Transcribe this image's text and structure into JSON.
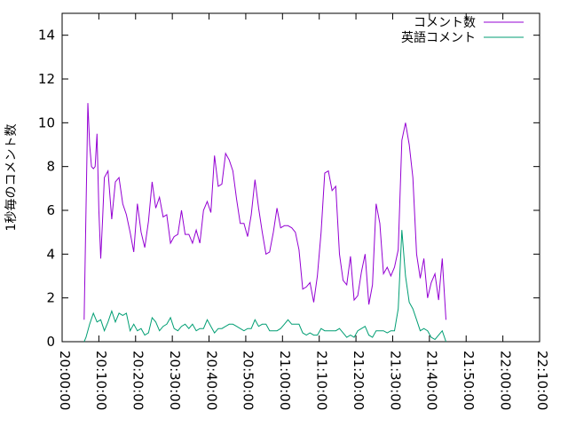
{
  "chart_data": {
    "type": "line",
    "title": "",
    "xlabel": "",
    "ylabel": "1秒毎のコメント数",
    "xlim": [
      "20:00:00",
      "22:10:00"
    ],
    "ylim": [
      0,
      15
    ],
    "xticks": [
      "20:00:00",
      "20:10:00",
      "20:20:00",
      "20:30:00",
      "20:40:00",
      "20:50:00",
      "21:00:00",
      "21:10:00",
      "21:20:00",
      "21:30:00",
      "21:40:00",
      "21:50:00",
      "22:00:00",
      "22:10:00"
    ],
    "yticks": [
      0,
      2,
      4,
      6,
      8,
      10,
      12,
      14
    ],
    "legend_position": "top-right",
    "grid": false,
    "series": [
      {
        "name": "コメント数",
        "color": "#9400d3",
        "points": [
          [
            "20:06:00",
            1.0
          ],
          [
            "20:06:30",
            6.0
          ],
          [
            "20:07:00",
            10.9
          ],
          [
            "20:07:30",
            9.0
          ],
          [
            "20:08:00",
            8.0
          ],
          [
            "20:08:30",
            7.9
          ],
          [
            "20:09:00",
            8.0
          ],
          [
            "20:09:30",
            9.5
          ],
          [
            "20:10:00",
            6.0
          ],
          [
            "20:10:30",
            3.8
          ],
          [
            "20:11:00",
            5.5
          ],
          [
            "20:11:30",
            7.5
          ],
          [
            "20:12:30",
            7.8
          ],
          [
            "20:13:30",
            5.6
          ],
          [
            "20:14:30",
            7.3
          ],
          [
            "20:15:30",
            7.5
          ],
          [
            "20:16:30",
            6.3
          ],
          [
            "20:17:30",
            5.8
          ],
          [
            "20:18:30",
            5.0
          ],
          [
            "20:19:30",
            4.1
          ],
          [
            "20:20:30",
            6.3
          ],
          [
            "20:21:30",
            5.0
          ],
          [
            "20:22:30",
            4.3
          ],
          [
            "20:23:30",
            5.5
          ],
          [
            "20:24:30",
            7.3
          ],
          [
            "20:25:30",
            6.1
          ],
          [
            "20:26:30",
            6.6
          ],
          [
            "20:27:30",
            5.7
          ],
          [
            "20:28:30",
            5.8
          ],
          [
            "20:29:30",
            4.5
          ],
          [
            "20:30:30",
            4.8
          ],
          [
            "20:31:30",
            4.9
          ],
          [
            "20:32:30",
            6.0
          ],
          [
            "20:33:30",
            4.9
          ],
          [
            "20:34:30",
            4.9
          ],
          [
            "20:35:30",
            4.5
          ],
          [
            "20:36:30",
            5.1
          ],
          [
            "20:37:30",
            4.5
          ],
          [
            "20:38:30",
            6.0
          ],
          [
            "20:39:30",
            6.4
          ],
          [
            "20:40:30",
            5.9
          ],
          [
            "20:41:30",
            8.5
          ],
          [
            "20:42:30",
            7.1
          ],
          [
            "20:43:30",
            7.2
          ],
          [
            "20:44:30",
            8.6
          ],
          [
            "20:45:30",
            8.3
          ],
          [
            "20:46:30",
            7.8
          ],
          [
            "20:47:30",
            6.5
          ],
          [
            "20:48:30",
            5.4
          ],
          [
            "20:49:30",
            5.4
          ],
          [
            "20:50:30",
            4.8
          ],
          [
            "20:51:30",
            5.8
          ],
          [
            "20:52:30",
            7.4
          ],
          [
            "20:53:30",
            6.1
          ],
          [
            "20:54:30",
            5.0
          ],
          [
            "20:55:30",
            4.0
          ],
          [
            "20:56:30",
            4.1
          ],
          [
            "20:57:30",
            5.0
          ],
          [
            "20:58:30",
            6.1
          ],
          [
            "20:59:30",
            5.2
          ],
          [
            "21:00:30",
            5.3
          ],
          [
            "21:01:30",
            5.3
          ],
          [
            "21:02:30",
            5.2
          ],
          [
            "21:03:30",
            5.0
          ],
          [
            "21:04:30",
            4.2
          ],
          [
            "21:05:30",
            2.4
          ],
          [
            "21:06:30",
            2.5
          ],
          [
            "21:07:30",
            2.7
          ],
          [
            "21:08:30",
            1.8
          ],
          [
            "21:09:30",
            3.0
          ],
          [
            "21:10:30",
            5.0
          ],
          [
            "21:11:30",
            7.7
          ],
          [
            "21:12:30",
            7.8
          ],
          [
            "21:13:30",
            6.9
          ],
          [
            "21:14:30",
            7.1
          ],
          [
            "21:15:30",
            4.0
          ],
          [
            "21:16:30",
            2.8
          ],
          [
            "21:17:30",
            2.6
          ],
          [
            "21:18:30",
            3.9
          ],
          [
            "21:19:30",
            1.9
          ],
          [
            "21:20:30",
            2.1
          ],
          [
            "21:21:30",
            3.2
          ],
          [
            "21:22:30",
            4.0
          ],
          [
            "21:23:30",
            1.7
          ],
          [
            "21:24:30",
            2.6
          ],
          [
            "21:25:30",
            6.3
          ],
          [
            "21:26:30",
            5.4
          ],
          [
            "21:27:30",
            3.1
          ],
          [
            "21:28:30",
            3.4
          ],
          [
            "21:29:30",
            3.0
          ],
          [
            "21:30:30",
            3.4
          ],
          [
            "21:31:30",
            4.2
          ],
          [
            "21:32:30",
            9.2
          ],
          [
            "21:33:30",
            10.0
          ],
          [
            "21:34:30",
            9.0
          ],
          [
            "21:35:30",
            7.5
          ],
          [
            "21:36:30",
            4.0
          ],
          [
            "21:37:30",
            2.9
          ],
          [
            "21:38:30",
            3.8
          ],
          [
            "21:39:30",
            2.0
          ],
          [
            "21:40:30",
            2.7
          ],
          [
            "21:41:30",
            3.1
          ],
          [
            "21:42:30",
            1.9
          ],
          [
            "21:43:30",
            3.8
          ],
          [
            "21:44:30",
            1.0
          ]
        ]
      },
      {
        "name": "英語コメント",
        "color": "#009e73",
        "points": [
          [
            "20:06:00",
            0.0
          ],
          [
            "20:06:30",
            0.2
          ],
          [
            "20:07:30",
            0.8
          ],
          [
            "20:08:30",
            1.3
          ],
          [
            "20:09:30",
            0.9
          ],
          [
            "20:10:30",
            1.0
          ],
          [
            "20:11:30",
            0.5
          ],
          [
            "20:12:30",
            0.9
          ],
          [
            "20:13:30",
            1.4
          ],
          [
            "20:14:30",
            0.9
          ],
          [
            "20:15:30",
            1.3
          ],
          [
            "20:16:30",
            1.2
          ],
          [
            "20:17:30",
            1.3
          ],
          [
            "20:18:30",
            0.5
          ],
          [
            "20:19:30",
            0.8
          ],
          [
            "20:20:30",
            0.5
          ],
          [
            "20:21:30",
            0.6
          ],
          [
            "20:22:30",
            0.3
          ],
          [
            "20:23:30",
            0.4
          ],
          [
            "20:24:30",
            1.1
          ],
          [
            "20:25:30",
            0.9
          ],
          [
            "20:26:30",
            0.5
          ],
          [
            "20:27:30",
            0.7
          ],
          [
            "20:28:30",
            0.8
          ],
          [
            "20:29:30",
            1.1
          ],
          [
            "20:30:30",
            0.6
          ],
          [
            "20:31:30",
            0.5
          ],
          [
            "20:32:30",
            0.7
          ],
          [
            "20:33:30",
            0.8
          ],
          [
            "20:34:30",
            0.6
          ],
          [
            "20:35:30",
            0.8
          ],
          [
            "20:36:30",
            0.5
          ],
          [
            "20:37:30",
            0.6
          ],
          [
            "20:38:30",
            0.6
          ],
          [
            "20:39:30",
            1.0
          ],
          [
            "20:40:30",
            0.7
          ],
          [
            "20:41:30",
            0.4
          ],
          [
            "20:42:30",
            0.6
          ],
          [
            "20:43:30",
            0.6
          ],
          [
            "20:44:30",
            0.7
          ],
          [
            "20:45:30",
            0.8
          ],
          [
            "20:46:30",
            0.8
          ],
          [
            "20:47:30",
            0.7
          ],
          [
            "20:48:30",
            0.6
          ],
          [
            "20:49:30",
            0.5
          ],
          [
            "20:50:30",
            0.6
          ],
          [
            "20:51:30",
            0.6
          ],
          [
            "20:52:30",
            1.0
          ],
          [
            "20:53:30",
            0.7
          ],
          [
            "20:54:30",
            0.8
          ],
          [
            "20:55:30",
            0.8
          ],
          [
            "20:56:30",
            0.5
          ],
          [
            "20:57:30",
            0.5
          ],
          [
            "20:58:30",
            0.5
          ],
          [
            "20:59:30",
            0.6
          ],
          [
            "21:00:30",
            0.8
          ],
          [
            "21:01:30",
            1.0
          ],
          [
            "21:02:30",
            0.8
          ],
          [
            "21:03:30",
            0.8
          ],
          [
            "21:04:30",
            0.8
          ],
          [
            "21:05:30",
            0.4
          ],
          [
            "21:06:30",
            0.3
          ],
          [
            "21:07:30",
            0.4
          ],
          [
            "21:08:30",
            0.3
          ],
          [
            "21:09:30",
            0.3
          ],
          [
            "21:10:30",
            0.6
          ],
          [
            "21:11:30",
            0.5
          ],
          [
            "21:12:30",
            0.5
          ],
          [
            "21:13:30",
            0.5
          ],
          [
            "21:14:30",
            0.5
          ],
          [
            "21:15:30",
            0.6
          ],
          [
            "21:16:30",
            0.4
          ],
          [
            "21:17:30",
            0.2
          ],
          [
            "21:18:30",
            0.3
          ],
          [
            "21:19:30",
            0.2
          ],
          [
            "21:20:30",
            0.5
          ],
          [
            "21:21:30",
            0.6
          ],
          [
            "21:22:30",
            0.7
          ],
          [
            "21:23:30",
            0.3
          ],
          [
            "21:24:30",
            0.2
          ],
          [
            "21:25:30",
            0.5
          ],
          [
            "21:26:30",
            0.5
          ],
          [
            "21:27:30",
            0.5
          ],
          [
            "21:28:30",
            0.4
          ],
          [
            "21:29:30",
            0.5
          ],
          [
            "21:30:30",
            0.5
          ],
          [
            "21:31:30",
            1.5
          ],
          [
            "21:32:30",
            5.1
          ],
          [
            "21:33:30",
            3.0
          ],
          [
            "21:34:30",
            1.8
          ],
          [
            "21:35:30",
            1.5
          ],
          [
            "21:36:30",
            1.0
          ],
          [
            "21:37:30",
            0.5
          ],
          [
            "21:38:30",
            0.6
          ],
          [
            "21:39:30",
            0.5
          ],
          [
            "21:40:30",
            0.2
          ],
          [
            "21:41:30",
            0.1
          ],
          [
            "21:42:30",
            0.3
          ],
          [
            "21:43:30",
            0.5
          ],
          [
            "21:44:30",
            0.0
          ]
        ]
      }
    ]
  }
}
